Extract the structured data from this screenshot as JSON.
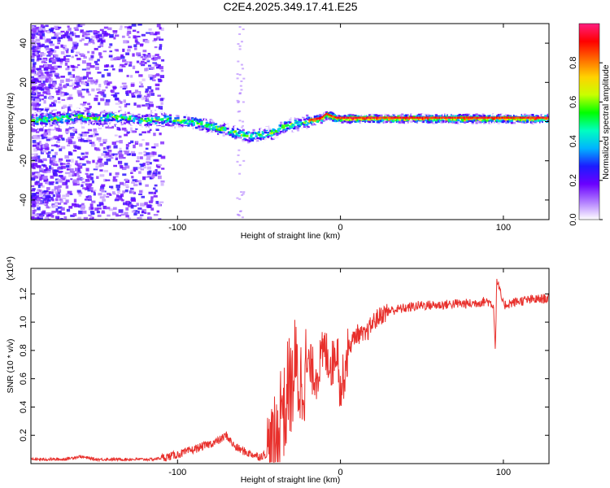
{
  "title": "C2E4.2025.349.17.41.E25",
  "chart_data": [
    {
      "type": "heatmap",
      "title": "C2E4.2025.349.17.41.E25",
      "xlabel": "Height of straight line (km)",
      "ylabel": "Frequency (Hz)",
      "xlim": [
        -190,
        128
      ],
      "ylim": [
        -50,
        50
      ],
      "xticks": [
        -100,
        0,
        100
      ],
      "yticks": [
        -40,
        -20,
        0,
        20,
        40
      ],
      "colorbar": {
        "label": "Normalized spectral amplitude",
        "range": [
          0.0,
          1.0
        ],
        "ticks": [
          0.0,
          0.2,
          0.4,
          0.6,
          0.8
        ],
        "tick_labels": [
          "0.0",
          "0.2",
          "0.4",
          "0.6",
          "0.8"
        ],
        "colormap": [
          "#ffffff",
          "#b07cff",
          "#6a00ff",
          "#1c1cff",
          "#00b4ff",
          "#00ffc0",
          "#00ff00",
          "#c8ff00",
          "#ffd200",
          "#ff6a00",
          "#ff0000",
          "#ff1e80"
        ]
      },
      "ridge": {
        "x": [
          -188,
          -175,
          -160,
          -150,
          -140,
          -130,
          -120,
          -110,
          -100,
          -90,
          -80,
          -70,
          -62,
          -55,
          -48,
          -42,
          -36,
          -30,
          -24,
          -18,
          -12,
          -9,
          -6,
          -3,
          0,
          10,
          20,
          40,
          60,
          80,
          95,
          100,
          110,
          128
        ],
        "y": [
          1,
          2,
          3,
          2,
          3,
          2,
          1,
          2,
          1,
          0,
          -2,
          -4,
          -6,
          -7,
          -6,
          -5,
          -2,
          -1,
          0,
          1,
          2,
          4,
          3,
          2,
          2,
          2,
          2,
          2,
          2,
          2,
          2,
          2,
          2,
          2
        ]
      }
    },
    {
      "type": "line",
      "xlabel": "Height of straight line (km)",
      "ylabel": "SNR (10 * v/v)",
      "y_multiplier": "(x10⁴)",
      "xlim": [
        -190,
        128
      ],
      "ylim": [
        0.0,
        1.38
      ],
      "xticks": [
        -100,
        0,
        100
      ],
      "yticks": [
        0.2,
        0.4,
        0.6,
        0.8,
        1.0,
        1.2
      ],
      "ytick_labels": [
        "0.2",
        "0.4",
        "0.6",
        "0.8",
        "1.0",
        "1.2"
      ],
      "color": "#e8302c",
      "series": [
        {
          "name": "SNR",
          "x": [
            -190,
            -170,
            -160,
            -150,
            -130,
            -115,
            -105,
            -95,
            -85,
            -75,
            -70,
            -65,
            -58,
            -50,
            -42,
            -38,
            -36,
            -34,
            -32,
            -30,
            -28,
            -25,
            -20,
            -15,
            -10,
            -5,
            -2,
            0,
            5,
            10,
            15,
            20,
            25,
            30,
            40,
            50,
            60,
            70,
            80,
            90,
            94,
            95,
            96,
            100,
            110,
            120,
            128
          ],
          "y": [
            0.03,
            0.03,
            0.05,
            0.03,
            0.03,
            0.03,
            0.05,
            0.08,
            0.12,
            0.16,
            0.2,
            0.12,
            0.08,
            0.05,
            0.08,
            0.2,
            0.5,
            0.3,
            0.6,
            0.5,
            0.7,
            0.55,
            0.7,
            0.62,
            0.8,
            0.7,
            0.85,
            0.5,
            0.82,
            0.92,
            0.9,
            1.0,
            1.05,
            1.08,
            1.1,
            1.12,
            1.12,
            1.13,
            1.13,
            1.15,
            1.12,
            0.8,
            1.3,
            1.12,
            1.15,
            1.16,
            1.17
          ]
        }
      ]
    }
  ]
}
